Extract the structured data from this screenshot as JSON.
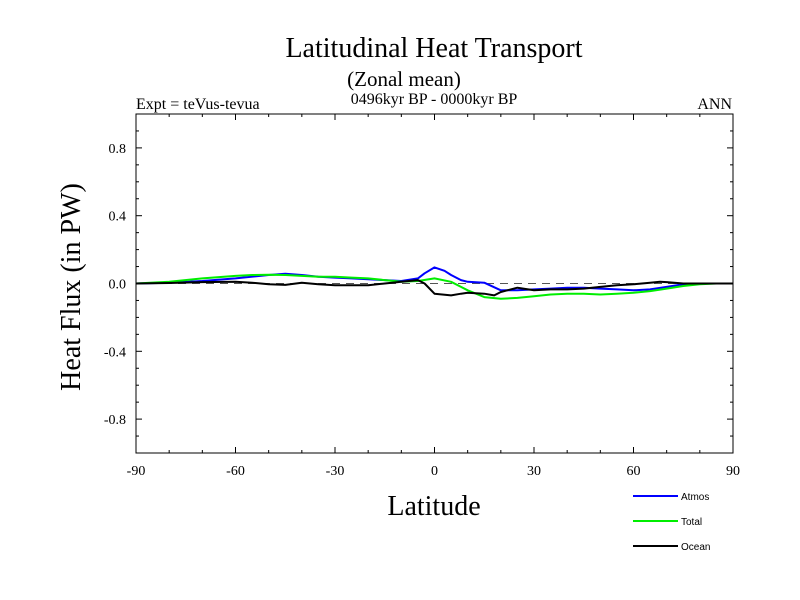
{
  "chart_data": {
    "type": "line",
    "title": "Latitudinal Heat Transport",
    "subtitle": "(Zonal mean)",
    "center_label": "0496kyr BP - 0000kyr BP",
    "left_label": "Expt = teVus-tevua",
    "right_label": "ANN",
    "xlabel": "Latitude",
    "ylabel": "Heat Flux (in PW)",
    "xlim": [
      -90,
      90
    ],
    "ylim": [
      -1.0,
      1.0
    ],
    "xticks": [
      -90,
      -60,
      -30,
      0,
      30,
      60,
      90
    ],
    "xtick_labels": [
      "-90",
      "-60",
      "-30",
      "0",
      "30",
      "60",
      "90"
    ],
    "yticks": [
      -0.8,
      -0.4,
      0.0,
      0.4,
      0.8
    ],
    "ytick_labels": [
      "-0.8",
      "-0.4",
      "0.0",
      "0.4",
      "0.8"
    ],
    "zero_line": true,
    "grid": false,
    "legend_position": "bottom-right",
    "series": [
      {
        "name": "Atmos",
        "color": "#0000ff",
        "x": [
          -90,
          -80,
          -70,
          -60,
          -50,
          -45,
          -40,
          -35,
          -30,
          -25,
          -20,
          -15,
          -10,
          -5,
          -3,
          0,
          3,
          5,
          8,
          10,
          15,
          20,
          25,
          30,
          35,
          40,
          45,
          50,
          55,
          60,
          65,
          70,
          75,
          80,
          85,
          90
        ],
        "y": [
          0,
          0.005,
          0.015,
          0.03,
          0.05,
          0.058,
          0.05,
          0.04,
          0.035,
          0.03,
          0.025,
          0.02,
          0.015,
          0.03,
          0.06,
          0.095,
          0.075,
          0.05,
          0.02,
          0.01,
          0.005,
          -0.04,
          -0.04,
          -0.035,
          -0.03,
          -0.025,
          -0.025,
          -0.03,
          -0.035,
          -0.04,
          -0.035,
          -0.02,
          -0.005,
          0,
          0,
          0
        ]
      },
      {
        "name": "Total",
        "color": "#00ee00",
        "x": [
          -90,
          -80,
          -70,
          -60,
          -55,
          -50,
          -45,
          -40,
          -35,
          -30,
          -25,
          -20,
          -15,
          -10,
          -5,
          0,
          5,
          8,
          10,
          15,
          20,
          25,
          30,
          35,
          40,
          45,
          50,
          55,
          60,
          65,
          70,
          75,
          80,
          85,
          90
        ],
        "y": [
          0,
          0.01,
          0.03,
          0.045,
          0.05,
          0.052,
          0.05,
          0.045,
          0.04,
          0.04,
          0.035,
          0.03,
          0.02,
          0.01,
          0.015,
          0.03,
          0.01,
          -0.02,
          -0.04,
          -0.08,
          -0.09,
          -0.085,
          -0.075,
          -0.065,
          -0.06,
          -0.06,
          -0.065,
          -0.06,
          -0.055,
          -0.045,
          -0.03,
          -0.015,
          -0.005,
          0,
          0
        ]
      },
      {
        "name": "Ocean",
        "color": "#000000",
        "x": [
          -90,
          -80,
          -70,
          -60,
          -55,
          -50,
          -45,
          -40,
          -35,
          -30,
          -25,
          -20,
          -15,
          -10,
          -5,
          -3,
          0,
          5,
          8,
          10,
          15,
          18,
          20,
          25,
          30,
          35,
          40,
          45,
          50,
          55,
          60,
          65,
          68,
          70,
          75,
          80,
          85,
          90
        ],
        "y": [
          0,
          0.003,
          0.008,
          0.01,
          0.005,
          -0.005,
          -0.008,
          0.005,
          -0.005,
          -0.01,
          -0.01,
          -0.01,
          0.0,
          0.01,
          0.02,
          0.0,
          -0.06,
          -0.07,
          -0.06,
          -0.055,
          -0.06,
          -0.07,
          -0.05,
          -0.025,
          -0.04,
          -0.035,
          -0.035,
          -0.03,
          -0.02,
          -0.01,
          -0.005,
          0.005,
          0.01,
          0.008,
          0.0,
          0.0,
          0.0,
          0
        ]
      }
    ]
  }
}
